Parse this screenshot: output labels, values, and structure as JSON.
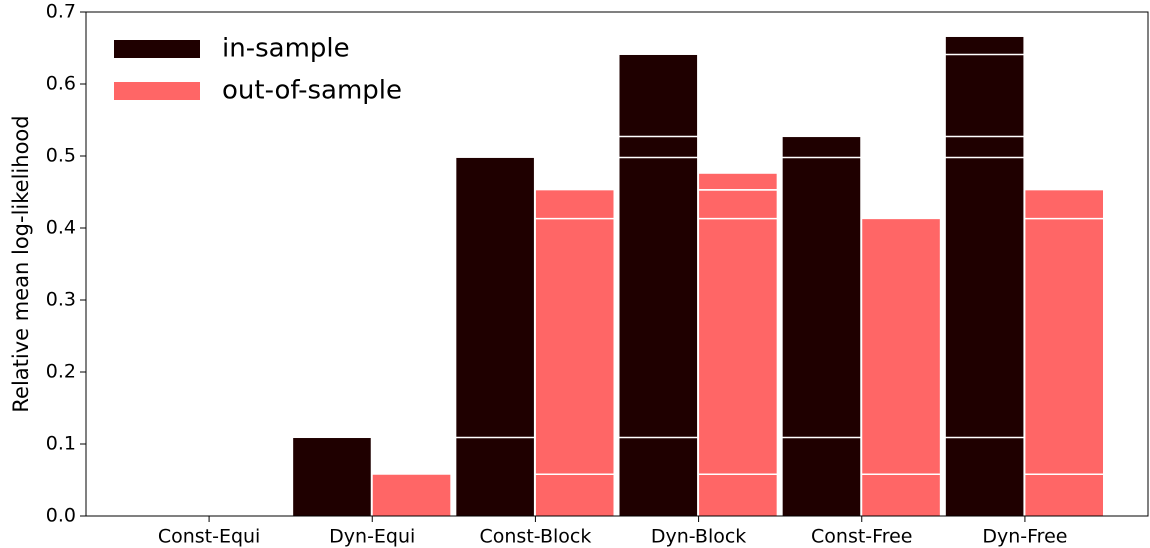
{
  "chart_data": {
    "type": "bar",
    "y_label": "Relative mean log-likelihood",
    "categories": [
      "Const-Equi",
      "Dyn-Equi",
      "Const-Block",
      "Dyn-Block",
      "Const-Free",
      "Dyn-Free"
    ],
    "series": [
      {
        "name": "in-sample",
        "color": "#1f0000",
        "values": [
          0,
          0.109,
          0.498,
          0.641,
          0.527,
          0.666
        ]
      },
      {
        "name": "out-of-sample",
        "color": "#ff6666",
        "values": [
          0,
          0.058,
          0.453,
          0.476,
          0.413,
          0.453
        ]
      }
    ],
    "ylim": [
      0,
      0.7
    ],
    "yticks": [
      {
        "value": 0,
        "label": "0.0"
      },
      0.1,
      0.2,
      0.3,
      0.4,
      0.5,
      0.6,
      0.7
    ],
    "legend": "upper left"
  }
}
